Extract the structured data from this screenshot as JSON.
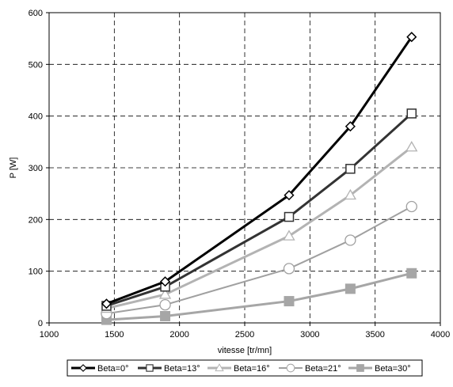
{
  "chart_data": {
    "type": "line",
    "xlabel": "vitesse [tr/mn]",
    "ylabel": "P [W]",
    "xlim": [
      1000,
      4000
    ],
    "ylim": [
      0,
      600
    ],
    "xticks": [
      1000,
      1500,
      2000,
      2500,
      3000,
      3500,
      4000
    ],
    "yticks": [
      0,
      100,
      200,
      300,
      400,
      500,
      600
    ],
    "grid": "dashed",
    "legend_position": "bottom",
    "series": [
      {
        "name": "Beta=0°",
        "color": "#000000",
        "marker": "diamond",
        "x": [
          1440,
          1890,
          2840,
          3310,
          3780
        ],
        "y": [
          37,
          80,
          247,
          380,
          553
        ]
      },
      {
        "name": "Beta=13°",
        "color": "#333333",
        "marker": "square-open",
        "x": [
          1440,
          1890,
          2840,
          3310,
          3780
        ],
        "y": [
          33,
          70,
          205,
          298,
          405
        ]
      },
      {
        "name": "Beta=16°",
        "color": "#b3b3b3",
        "marker": "triangle",
        "x": [
          1440,
          1890,
          2840,
          3310,
          3780
        ],
        "y": [
          28,
          55,
          168,
          247,
          340
        ]
      },
      {
        "name": "Beta=21°",
        "color": "#a0a0a0",
        "marker": "circle",
        "x": [
          1440,
          1890,
          2840,
          3310,
          3780
        ],
        "y": [
          18,
          35,
          105,
          160,
          225
        ]
      },
      {
        "name": "Beta=30°",
        "color": "#a6a6a6",
        "marker": "square-filled",
        "x": [
          1440,
          1890,
          2840,
          3310,
          3780
        ],
        "y": [
          6,
          13,
          42,
          66,
          96
        ]
      }
    ]
  }
}
